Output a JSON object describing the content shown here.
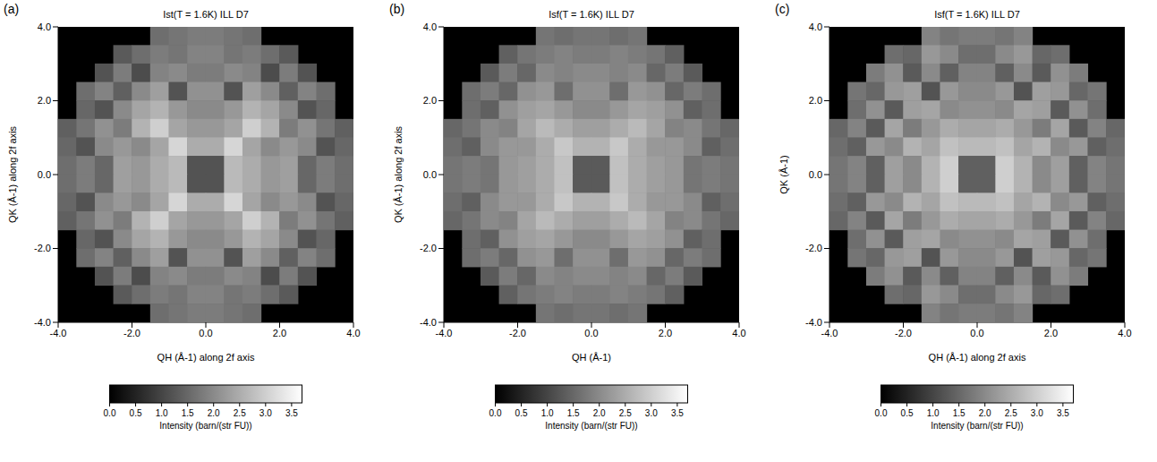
{
  "chart_data": [
    {
      "panel": "(a)",
      "type": "heatmap",
      "title": "Ist(T = 1.6K) ILL D7",
      "x_label": "QH (Å-1) along 2f axis",
      "y_label": "QK (Å-1) along 2f axis",
      "xlim": [
        -4,
        4
      ],
      "ylim": [
        -4,
        4
      ],
      "xticks": [
        {
          "value": -4,
          "label": "-4.0"
        },
        {
          "value": -2,
          "label": "-2.0"
        },
        {
          "value": 0,
          "label": "0.0"
        },
        {
          "value": 2,
          "label": "2.0"
        },
        {
          "value": 4,
          "label": "4.0"
        }
      ],
      "yticks": [
        {
          "value": -4,
          "label": "-4.0"
        },
        {
          "value": -2,
          "label": "-2.0"
        },
        {
          "value": 0,
          "label": "0.0"
        },
        {
          "value": 2,
          "label": "2.0"
        },
        {
          "value": 4,
          "label": "4.0"
        }
      ],
      "x": [
        -3.75,
        -3.25,
        -2.75,
        -2.25,
        -1.75,
        -1.25,
        -0.75,
        -0.25,
        0.25,
        0.75,
        1.25,
        1.75,
        2.25,
        2.75,
        3.25,
        3.75
      ],
      "y": [
        3.75,
        3.25,
        2.75,
        2.25,
        1.75,
        1.25,
        0.75,
        0.25,
        -0.25,
        -0.75,
        -1.25,
        -1.75,
        -2.25,
        -2.75,
        -3.25,
        -3.75
      ],
      "cells": [
        [
          null,
          null,
          null,
          null,
          null,
          1.6,
          1.7,
          1.8,
          1.8,
          1.7,
          1.6,
          null,
          null,
          null,
          null,
          null
        ],
        [
          null,
          null,
          null,
          1.3,
          1.6,
          1.8,
          1.7,
          1.9,
          1.9,
          1.7,
          1.8,
          1.6,
          1.3,
          null,
          null,
          null
        ],
        [
          null,
          null,
          1.2,
          1.8,
          1.1,
          1.9,
          2.0,
          1.8,
          1.8,
          2.0,
          1.9,
          1.1,
          1.8,
          1.2,
          null,
          null
        ],
        [
          null,
          1.6,
          1.9,
          1.4,
          2.0,
          2.3,
          1.2,
          2.1,
          2.1,
          1.2,
          2.3,
          2.0,
          1.4,
          1.9,
          1.6,
          null
        ],
        [
          null,
          1.5,
          1.2,
          2.0,
          2.4,
          2.6,
          2.2,
          2.0,
          2.0,
          2.2,
          2.6,
          2.4,
          2.0,
          1.2,
          1.5,
          null
        ],
        [
          1.4,
          1.7,
          2.1,
          1.8,
          2.6,
          3.0,
          2.4,
          2.2,
          2.2,
          2.4,
          3.0,
          2.6,
          1.8,
          2.1,
          1.7,
          1.4
        ],
        [
          1.5,
          1.2,
          2.0,
          2.2,
          2.0,
          2.4,
          3.1,
          2.5,
          2.5,
          3.1,
          2.4,
          2.0,
          2.2,
          2.0,
          1.2,
          1.5
        ],
        [
          1.6,
          1.8,
          1.5,
          2.3,
          2.2,
          2.5,
          2.7,
          1.2,
          1.2,
          2.7,
          2.5,
          2.2,
          2.3,
          1.5,
          1.8,
          1.6
        ],
        [
          1.6,
          1.8,
          1.5,
          2.3,
          2.2,
          2.5,
          2.7,
          1.2,
          1.2,
          2.7,
          2.5,
          2.2,
          2.3,
          1.5,
          1.8,
          1.6
        ],
        [
          1.5,
          1.2,
          2.0,
          2.2,
          2.0,
          2.4,
          3.1,
          2.5,
          2.5,
          3.1,
          2.4,
          2.0,
          2.2,
          2.0,
          1.2,
          1.5
        ],
        [
          1.4,
          1.7,
          2.1,
          1.8,
          2.6,
          3.0,
          2.4,
          2.2,
          2.2,
          2.4,
          3.0,
          2.6,
          1.8,
          2.1,
          1.7,
          1.4
        ],
        [
          null,
          1.5,
          1.2,
          2.0,
          2.4,
          2.6,
          2.2,
          2.0,
          2.0,
          2.2,
          2.6,
          2.4,
          2.0,
          1.2,
          1.5,
          null
        ],
        [
          null,
          1.6,
          1.9,
          1.4,
          2.0,
          2.3,
          1.2,
          2.1,
          2.1,
          1.2,
          2.3,
          2.0,
          1.4,
          1.9,
          1.6,
          null
        ],
        [
          null,
          null,
          1.2,
          1.8,
          1.1,
          1.9,
          2.0,
          1.8,
          1.8,
          2.0,
          1.9,
          1.1,
          1.8,
          1.2,
          null,
          null
        ],
        [
          null,
          null,
          null,
          1.3,
          1.6,
          1.8,
          1.7,
          1.9,
          1.9,
          1.7,
          1.8,
          1.6,
          1.3,
          null,
          null,
          null
        ],
        [
          null,
          null,
          null,
          null,
          null,
          1.6,
          1.7,
          1.8,
          1.8,
          1.7,
          1.6,
          null,
          null,
          null,
          null,
          null
        ]
      ],
      "colorbar": {
        "range": [
          0,
          3.7
        ],
        "label": "Intensity (barn/(str FU))",
        "ticks": [
          {
            "value": 0,
            "label": "0.0"
          },
          {
            "value": 0.5,
            "label": "0.5"
          },
          {
            "value": 1,
            "label": "1.0"
          },
          {
            "value": 1.5,
            "label": "1.5"
          },
          {
            "value": 2,
            "label": "2.0"
          },
          {
            "value": 2.5,
            "label": "2.5"
          },
          {
            "value": 3,
            "label": "3.0"
          },
          {
            "value": 3.5,
            "label": "3.5"
          }
        ]
      }
    },
    {
      "panel": "(b)",
      "type": "heatmap",
      "title": "Isf(T = 1.6K) ILL D7",
      "x_label": "QH (Å-1)",
      "y_label": "QK (Å-1) along 2f axis",
      "xlim": [
        -4,
        4
      ],
      "ylim": [
        -4,
        4
      ],
      "xticks": [
        {
          "value": -4,
          "label": "-4.0"
        },
        {
          "value": -2,
          "label": "-2.0"
        },
        {
          "value": 0,
          "label": "0.0"
        },
        {
          "value": 2,
          "label": "2.0"
        },
        {
          "value": 4,
          "label": "4.0"
        }
      ],
      "yticks": [
        {
          "value": -4,
          "label": "-4.0"
        },
        {
          "value": -2,
          "label": "-2.0"
        },
        {
          "value": 0,
          "label": "0.0"
        },
        {
          "value": 2,
          "label": "2.0"
        },
        {
          "value": 4,
          "label": "4.0"
        }
      ],
      "x": [
        -3.75,
        -3.25,
        -2.75,
        -2.25,
        -1.75,
        -1.25,
        -0.75,
        -0.25,
        0.25,
        0.75,
        1.25,
        1.75,
        2.25,
        2.75,
        3.25,
        3.75
      ],
      "y": [
        3.75,
        3.25,
        2.75,
        2.25,
        1.75,
        1.25,
        0.75,
        0.25,
        -0.25,
        -0.75,
        -1.25,
        -1.75,
        -2.25,
        -2.75,
        -3.25,
        -3.75
      ],
      "cells": [
        [
          null,
          null,
          null,
          null,
          null,
          1.7,
          1.6,
          1.7,
          1.7,
          1.6,
          1.7,
          null,
          null,
          null,
          null,
          null
        ],
        [
          null,
          null,
          null,
          1.4,
          1.7,
          1.8,
          1.9,
          1.8,
          1.8,
          1.9,
          1.8,
          1.7,
          1.4,
          null,
          null,
          null
        ],
        [
          null,
          null,
          1.3,
          1.8,
          1.5,
          2.0,
          1.9,
          2.0,
          2.0,
          1.9,
          2.0,
          1.5,
          1.8,
          1.3,
          null,
          null
        ],
        [
          null,
          1.6,
          1.8,
          1.5,
          2.1,
          2.2,
          1.6,
          2.1,
          2.1,
          1.6,
          2.2,
          2.1,
          1.5,
          1.8,
          1.6,
          null
        ],
        [
          null,
          1.6,
          1.4,
          2.1,
          2.3,
          2.4,
          2.2,
          2.0,
          2.0,
          2.2,
          2.4,
          2.3,
          2.1,
          1.4,
          1.6,
          null
        ],
        [
          1.5,
          1.7,
          2.0,
          1.9,
          2.4,
          2.7,
          2.5,
          2.3,
          2.3,
          2.5,
          2.7,
          2.4,
          1.9,
          2.0,
          1.7,
          1.5
        ],
        [
          1.6,
          1.4,
          2.0,
          2.2,
          2.2,
          2.5,
          2.9,
          2.6,
          2.6,
          2.9,
          2.5,
          2.2,
          2.2,
          2.0,
          1.4,
          1.6
        ],
        [
          1.7,
          1.8,
          1.7,
          2.2,
          2.3,
          2.5,
          2.8,
          1.3,
          1.3,
          2.8,
          2.5,
          2.3,
          2.2,
          1.7,
          1.8,
          1.7
        ],
        [
          1.7,
          1.8,
          1.7,
          2.2,
          2.3,
          2.5,
          2.8,
          1.3,
          1.3,
          2.8,
          2.5,
          2.3,
          2.2,
          1.7,
          1.8,
          1.7
        ],
        [
          1.6,
          1.4,
          2.0,
          2.2,
          2.2,
          2.5,
          2.9,
          2.6,
          2.6,
          2.9,
          2.5,
          2.2,
          2.2,
          2.0,
          1.4,
          1.6
        ],
        [
          1.5,
          1.7,
          2.0,
          1.9,
          2.4,
          2.7,
          2.5,
          2.3,
          2.3,
          2.5,
          2.7,
          2.4,
          1.9,
          2.0,
          1.7,
          1.5
        ],
        [
          null,
          1.6,
          1.4,
          2.1,
          2.3,
          2.4,
          2.2,
          2.0,
          2.0,
          2.2,
          2.4,
          2.3,
          2.1,
          1.4,
          1.6,
          null
        ],
        [
          null,
          1.6,
          1.8,
          1.5,
          2.1,
          2.2,
          1.6,
          2.1,
          2.1,
          1.6,
          2.2,
          2.1,
          1.5,
          1.8,
          1.6,
          null
        ],
        [
          null,
          null,
          1.3,
          1.8,
          1.5,
          2.0,
          1.9,
          2.0,
          2.0,
          1.9,
          2.0,
          1.5,
          1.8,
          1.3,
          null,
          null
        ],
        [
          null,
          null,
          null,
          1.4,
          1.7,
          1.8,
          1.9,
          1.8,
          1.8,
          1.9,
          1.8,
          1.7,
          1.4,
          null,
          null,
          null
        ],
        [
          null,
          null,
          null,
          null,
          null,
          1.7,
          1.6,
          1.7,
          1.7,
          1.6,
          1.7,
          null,
          null,
          null,
          null,
          null
        ]
      ],
      "colorbar": {
        "range": [
          0,
          3.7
        ],
        "label": "Intensity (barn/(str FU))",
        "ticks": [
          {
            "value": 0,
            "label": "0.0"
          },
          {
            "value": 0.5,
            "label": "0.5"
          },
          {
            "value": 1,
            "label": "1.0"
          },
          {
            "value": 1.5,
            "label": "1.5"
          },
          {
            "value": 2,
            "label": "2.0"
          },
          {
            "value": 2.5,
            "label": "2.5"
          },
          {
            "value": 3,
            "label": "3.0"
          },
          {
            "value": 3.5,
            "label": "3.5"
          }
        ]
      }
    },
    {
      "panel": "(c)",
      "type": "heatmap",
      "title": "Isf(T = 1.6K) ILL D7",
      "x_label": "QH (Å-1) along 2f axis",
      "y_label": "QK (Å-1)",
      "xlim": [
        -4,
        4
      ],
      "ylim": [
        -4,
        4
      ],
      "xticks": [
        {
          "value": -4,
          "label": "-4.0"
        },
        {
          "value": -2,
          "label": "-2.0"
        },
        {
          "value": 0,
          "label": "0.0"
        },
        {
          "value": 2,
          "label": "2.0"
        },
        {
          "value": 4,
          "label": "4.0"
        }
      ],
      "yticks": [
        {
          "value": -4,
          "label": "-4.0"
        },
        {
          "value": -2,
          "label": "-2.0"
        },
        {
          "value": 0,
          "label": "0.0"
        },
        {
          "value": 2,
          "label": "2.0"
        },
        {
          "value": 4,
          "label": "4.0"
        }
      ],
      "x": [
        -3.75,
        -3.25,
        -2.75,
        -2.25,
        -1.75,
        -1.25,
        -0.75,
        -0.25,
        0.25,
        0.75,
        1.25,
        1.75,
        2.25,
        2.75,
        3.25,
        3.75
      ],
      "y": [
        3.75,
        3.25,
        2.75,
        2.25,
        1.75,
        1.25,
        0.75,
        0.25,
        -0.25,
        -0.75,
        -1.25,
        -1.75,
        -2.25,
        -2.75,
        -3.25,
        -3.75
      ],
      "cells": [
        [
          null,
          null,
          null,
          null,
          null,
          1.9,
          1.7,
          1.8,
          1.8,
          1.7,
          1.9,
          null,
          null,
          null,
          null,
          null
        ],
        [
          null,
          null,
          null,
          1.6,
          1.5,
          2.2,
          2.0,
          1.6,
          1.6,
          2.0,
          2.2,
          1.5,
          1.6,
          null,
          null,
          null
        ],
        [
          null,
          null,
          1.8,
          2.1,
          1.3,
          2.0,
          1.4,
          1.9,
          1.9,
          1.4,
          2.0,
          1.3,
          2.1,
          1.8,
          null,
          null
        ],
        [
          null,
          1.7,
          1.5,
          2.2,
          2.3,
          1.2,
          2.2,
          2.0,
          2.0,
          2.2,
          1.2,
          2.3,
          2.2,
          1.5,
          1.7,
          null
        ],
        [
          null,
          1.6,
          2.1,
          1.3,
          2.3,
          2.4,
          2.0,
          2.1,
          2.1,
          2.0,
          2.4,
          2.3,
          1.3,
          2.1,
          1.6,
          null
        ],
        [
          1.5,
          1.9,
          1.3,
          2.4,
          1.8,
          2.2,
          2.5,
          2.4,
          2.4,
          2.5,
          2.2,
          1.8,
          2.4,
          1.3,
          1.9,
          1.5
        ],
        [
          1.6,
          1.4,
          2.2,
          2.0,
          2.6,
          2.4,
          2.8,
          2.7,
          2.7,
          2.8,
          2.4,
          2.6,
          2.0,
          2.2,
          1.4,
          1.6
        ],
        [
          1.7,
          1.9,
          1.4,
          2.3,
          2.0,
          2.6,
          3.0,
          1.4,
          1.4,
          3.0,
          2.6,
          2.0,
          2.3,
          1.4,
          1.9,
          1.7
        ],
        [
          1.7,
          1.9,
          1.4,
          2.3,
          2.0,
          2.6,
          3.0,
          1.4,
          1.4,
          3.0,
          2.6,
          2.0,
          2.3,
          1.4,
          1.9,
          1.7
        ],
        [
          1.6,
          1.4,
          2.2,
          2.0,
          2.6,
          2.4,
          2.8,
          2.7,
          2.7,
          2.8,
          2.4,
          2.6,
          2.0,
          2.2,
          1.4,
          1.6
        ],
        [
          1.5,
          1.9,
          1.3,
          2.4,
          1.8,
          2.2,
          2.5,
          2.4,
          2.4,
          2.5,
          2.2,
          1.8,
          2.4,
          1.3,
          1.9,
          1.5
        ],
        [
          null,
          1.6,
          2.1,
          1.3,
          2.3,
          2.4,
          2.0,
          2.1,
          2.1,
          2.0,
          2.4,
          2.3,
          1.3,
          2.1,
          1.6,
          null
        ],
        [
          null,
          1.7,
          1.5,
          2.2,
          2.3,
          1.2,
          2.2,
          2.0,
          2.0,
          2.2,
          1.2,
          2.3,
          2.2,
          1.5,
          1.7,
          null
        ],
        [
          null,
          null,
          1.8,
          2.1,
          1.3,
          2.0,
          1.4,
          1.9,
          1.9,
          1.4,
          2.0,
          1.3,
          2.1,
          1.8,
          null,
          null
        ],
        [
          null,
          null,
          null,
          1.6,
          1.5,
          2.2,
          2.0,
          1.6,
          1.6,
          2.0,
          2.2,
          1.5,
          1.6,
          null,
          null,
          null
        ],
        [
          null,
          null,
          null,
          null,
          null,
          1.9,
          1.7,
          1.8,
          1.8,
          1.7,
          1.9,
          null,
          null,
          null,
          null,
          null
        ]
      ],
      "colorbar": {
        "range": [
          0,
          3.7
        ],
        "label": "Intensity (barn/(str FU))",
        "ticks": [
          {
            "value": 0,
            "label": "0.0"
          },
          {
            "value": 0.5,
            "label": "0.5"
          },
          {
            "value": 1,
            "label": "1.0"
          },
          {
            "value": 1.5,
            "label": "1.5"
          },
          {
            "value": 2,
            "label": "2.0"
          },
          {
            "value": 2.5,
            "label": "2.5"
          },
          {
            "value": 3,
            "label": "3.0"
          },
          {
            "value": 3.5,
            "label": "3.5"
          }
        ]
      }
    }
  ]
}
